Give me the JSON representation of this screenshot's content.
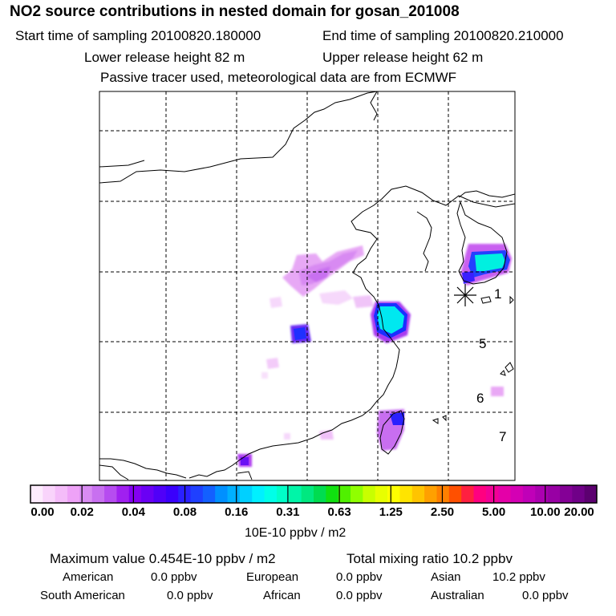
{
  "header": {
    "title": "NO2 source contributions in nested domain for gosan_201008",
    "start_time": "Start time of sampling 20100820.180000",
    "end_time": "End time of sampling 20100820.210000",
    "lower_height": "Lower release height   82 m",
    "upper_height": "Upper release height   62 m",
    "tracer_note": "Passive tracer used, meteorological data are from ECMWF"
  },
  "map": {
    "receptor_marker": "asterisk",
    "region_labels": [
      "1",
      "5",
      "6",
      "7"
    ]
  },
  "colorbar": {
    "tick_labels": [
      "0.00",
      "0.02",
      "0.04",
      "0.08",
      "0.16",
      "0.31",
      "0.63",
      "1.25",
      "2.50",
      "5.00",
      "10.00",
      "20.00"
    ],
    "colors": [
      "#fdecfd",
      "#f9d4fb",
      "#f4bcf9",
      "#eea2f7",
      "#d98cf2",
      "#c870f0",
      "#b64cf0",
      "#a020f0",
      "#8400f2",
      "#6a00f4",
      "#5000f8",
      "#3a00fc",
      "#2a20ff",
      "#1f40ff",
      "#1360ff",
      "#0090ff",
      "#00b0ff",
      "#00d0ff",
      "#00f0ff",
      "#00ffe8",
      "#00ffc8",
      "#00f5a8",
      "#00e880",
      "#00dc50",
      "#10e010",
      "#50f000",
      "#90ff00",
      "#c8ff00",
      "#e8ff00",
      "#ffff00",
      "#ffe400",
      "#ffc400",
      "#ffa000",
      "#ff8000",
      "#ff5000",
      "#ff2040",
      "#ff0080",
      "#f20096",
      "#e400a8",
      "#d400b4",
      "#c000b8",
      "#ac00b0",
      "#9800a4",
      "#840096",
      "#700088",
      "#5c0070"
    ],
    "units": "10E-10 ppbv / m2"
  },
  "summary": {
    "max_value": "Maximum value  0.454E-10 ppbv / m2",
    "total_mixing": "Total mixing ratio      10.2 ppbv"
  },
  "regions": [
    {
      "name": "American",
      "value": "0.0 ppbv"
    },
    {
      "name": "European",
      "value": "0.0 ppbv"
    },
    {
      "name": "Asian",
      "value": "10.2 ppbv"
    },
    {
      "name": "South American",
      "value": "0.0 ppbv"
    },
    {
      "name": "African",
      "value": "0.0 ppbv"
    },
    {
      "name": "Australian",
      "value": "0.0 ppbv"
    }
  ]
}
